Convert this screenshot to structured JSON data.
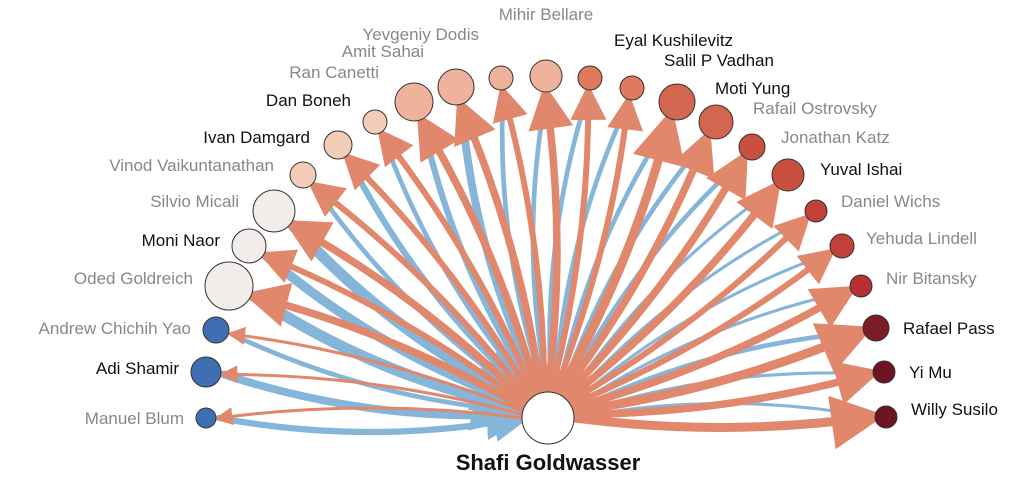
{
  "center": {
    "name": "Shafi Goldwasser"
  },
  "colors": {
    "out_edge": "#e0876c",
    "in_edge": "#86b5da",
    "node_stroke": "#333333",
    "label_dark": "#111111",
    "label_gray": "#888888"
  },
  "nodes": [
    {
      "name": "Manuel Blum",
      "fill": "#3f6fb0",
      "label_style": "gray",
      "out_weight": 1,
      "in_weight": 3
    },
    {
      "name": "Adi Shamir",
      "fill": "#3f6fb0",
      "label_style": "dark",
      "out_weight": 1,
      "in_weight": 4
    },
    {
      "name": "Andrew Chichih Yao",
      "fill": "#3f6fb0",
      "label_style": "gray",
      "out_weight": 1,
      "in_weight": 2
    },
    {
      "name": "Oded Goldreich",
      "fill": "#f2ecea",
      "label_style": "gray",
      "out_weight": 4,
      "in_weight": 6
    },
    {
      "name": "Moni Naor",
      "fill": "#f2ecea",
      "label_style": "dark",
      "out_weight": 3,
      "in_weight": 5
    },
    {
      "name": "Silvio Micali",
      "fill": "#f2ecea",
      "label_style": "gray",
      "out_weight": 4,
      "in_weight": 6
    },
    {
      "name": "Vinod Vaikuntanathan",
      "fill": "#f4cdb9",
      "label_style": "gray",
      "out_weight": 3,
      "in_weight": 2
    },
    {
      "name": "Ivan Damgard",
      "fill": "#f4cdb9",
      "label_style": "dark",
      "out_weight": 3,
      "in_weight": 3
    },
    {
      "name": "Dan Boneh",
      "fill": "#f4cdb9",
      "label_style": "dark",
      "out_weight": 3,
      "in_weight": 2
    },
    {
      "name": "Ran Canetti",
      "fill": "#eeb39a",
      "label_style": "gray",
      "out_weight": 4,
      "in_weight": 3
    },
    {
      "name": "Amit Sahai",
      "fill": "#eeb39a",
      "label_style": "gray",
      "out_weight": 4,
      "in_weight": 4
    },
    {
      "name": "Yevgeniy Dodis",
      "fill": "#eeb39a",
      "label_style": "gray",
      "out_weight": 3,
      "in_weight": 2
    },
    {
      "name": "Mihir Bellare",
      "fill": "#eeb39a",
      "label_style": "gray",
      "out_weight": 4,
      "in_weight": 2
    },
    {
      "name": "Eyal Kushilevitz",
      "fill": "#e07a5f",
      "label_style": "dark",
      "out_weight": 3,
      "in_weight": 2
    },
    {
      "name": "Salil P Vadhan",
      "fill": "#e07a5f",
      "label_style": "dark",
      "out_weight": 3,
      "in_weight": 2
    },
    {
      "name": "Moti Yung",
      "fill": "#d3664e",
      "label_style": "dark",
      "out_weight": 5,
      "in_weight": 2
    },
    {
      "name": "Rafail Ostrovsky",
      "fill": "#d3664e",
      "label_style": "gray",
      "out_weight": 4,
      "in_weight": 2
    },
    {
      "name": "Jonathan Katz",
      "fill": "#c9503f",
      "label_style": "gray",
      "out_weight": 4,
      "in_weight": 2
    },
    {
      "name": "Yuval Ishai",
      "fill": "#c9503f",
      "label_style": "dark",
      "out_weight": 4,
      "in_weight": 1
    },
    {
      "name": "Daniel Wichs",
      "fill": "#c2403a",
      "label_style": "gray",
      "out_weight": 3,
      "in_weight": 1
    },
    {
      "name": "Yehuda Lindell",
      "fill": "#c2403a",
      "label_style": "gray",
      "out_weight": 3,
      "in_weight": 1
    },
    {
      "name": "Nir Bitansky",
      "fill": "#b5302f",
      "label_style": "gray",
      "out_weight": 4,
      "in_weight": 1
    },
    {
      "name": "Rafael Pass",
      "fill": "#7a1c24",
      "label_style": "dark",
      "out_weight": 5,
      "in_weight": 2
    },
    {
      "name": "Yi Mu",
      "fill": "#6e1420",
      "label_style": "dark",
      "out_weight": 4,
      "in_weight": 1
    },
    {
      "name": "Willy Susilo",
      "fill": "#6e1420",
      "label_style": "dark",
      "out_weight": 5,
      "in_weight": 1
    }
  ]
}
